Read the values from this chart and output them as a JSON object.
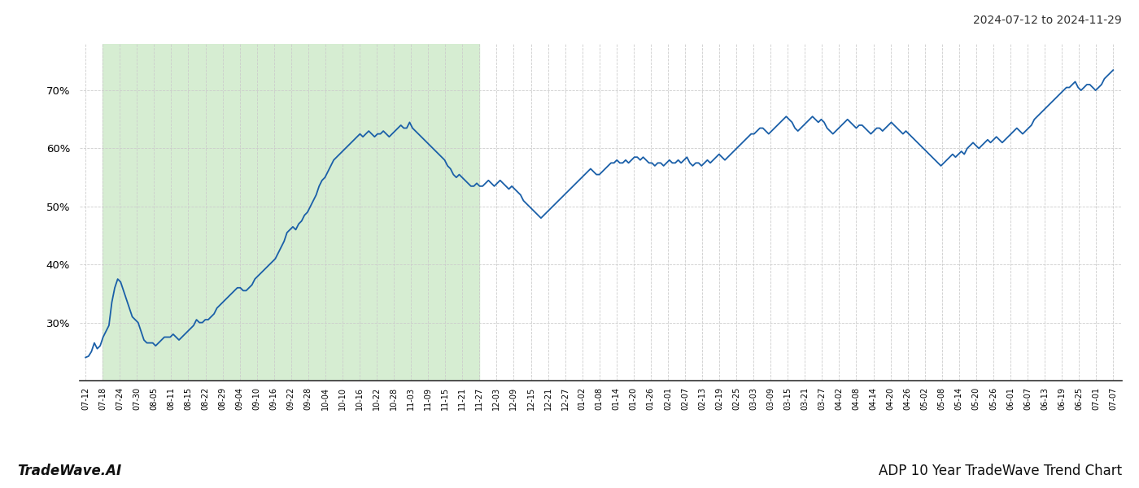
{
  "title_right": "2024-07-12 to 2024-11-29",
  "footer_left": "TradeWave.AI",
  "footer_right": "ADP 10 Year TradeWave Trend Chart",
  "ylim": [
    20,
    78
  ],
  "yticks": [
    30,
    40,
    50,
    60,
    70
  ],
  "line_color": "#1a5fa8",
  "shade_color": "#d6edd2",
  "background_color": "#ffffff",
  "grid_color": "#cccccc",
  "x_labels": [
    "07-12",
    "07-18",
    "07-24",
    "07-30",
    "08-05",
    "08-11",
    "08-15",
    "08-22",
    "08-29",
    "09-04",
    "09-10",
    "09-16",
    "09-22",
    "09-28",
    "10-04",
    "10-10",
    "10-16",
    "10-22",
    "10-28",
    "11-03",
    "11-09",
    "11-15",
    "11-21",
    "11-27",
    "12-03",
    "12-09",
    "12-15",
    "12-21",
    "12-27",
    "01-02",
    "01-08",
    "01-14",
    "01-20",
    "01-26",
    "02-01",
    "02-07",
    "02-13",
    "02-19",
    "02-25",
    "03-03",
    "03-09",
    "03-15",
    "03-21",
    "03-27",
    "04-02",
    "04-08",
    "04-14",
    "04-20",
    "04-26",
    "05-02",
    "05-08",
    "05-14",
    "05-20",
    "05-26",
    "06-01",
    "06-07",
    "06-13",
    "06-19",
    "06-25",
    "07-01",
    "07-07"
  ],
  "shade_label_start": "07-18",
  "shade_label_end": "11-27",
  "values": [
    24.0,
    24.2,
    25.0,
    26.5,
    25.5,
    26.0,
    27.5,
    28.5,
    29.5,
    33.5,
    36.0,
    37.5,
    37.0,
    35.5,
    34.0,
    32.5,
    31.0,
    30.5,
    30.0,
    28.5,
    27.0,
    26.5,
    26.5,
    26.5,
    26.0,
    26.5,
    27.0,
    27.5,
    27.5,
    27.5,
    28.0,
    27.5,
    27.0,
    27.5,
    28.0,
    28.5,
    29.0,
    29.5,
    30.5,
    30.0,
    30.0,
    30.5,
    30.5,
    31.0,
    31.5,
    32.5,
    33.0,
    33.5,
    34.0,
    34.5,
    35.0,
    35.5,
    36.0,
    36.0,
    35.5,
    35.5,
    36.0,
    36.5,
    37.5,
    38.0,
    38.5,
    39.0,
    39.5,
    40.0,
    40.5,
    41.0,
    42.0,
    43.0,
    44.0,
    45.5,
    46.0,
    46.5,
    46.0,
    47.0,
    47.5,
    48.5,
    49.0,
    50.0,
    51.0,
    52.0,
    53.5,
    54.5,
    55.0,
    56.0,
    57.0,
    58.0,
    58.5,
    59.0,
    59.5,
    60.0,
    60.5,
    61.0,
    61.5,
    62.0,
    62.5,
    62.0,
    62.5,
    63.0,
    62.5,
    62.0,
    62.5,
    62.5,
    63.0,
    62.5,
    62.0,
    62.5,
    63.0,
    63.5,
    64.0,
    63.5,
    63.5,
    64.5,
    63.5,
    63.0,
    62.5,
    62.0,
    61.5,
    61.0,
    60.5,
    60.0,
    59.5,
    59.0,
    58.5,
    58.0,
    57.0,
    56.5,
    55.5,
    55.0,
    55.5,
    55.0,
    54.5,
    54.0,
    53.5,
    53.5,
    54.0,
    53.5,
    53.5,
    54.0,
    54.5,
    54.0,
    53.5,
    54.0,
    54.5,
    54.0,
    53.5,
    53.0,
    53.5,
    53.0,
    52.5,
    52.0,
    51.0,
    50.5,
    50.0,
    49.5,
    49.0,
    48.5,
    48.0,
    48.5,
    49.0,
    49.5,
    50.0,
    50.5,
    51.0,
    51.5,
    52.0,
    52.5,
    53.0,
    53.5,
    54.0,
    54.5,
    55.0,
    55.5,
    56.0,
    56.5,
    56.0,
    55.5,
    55.5,
    56.0,
    56.5,
    57.0,
    57.5,
    57.5,
    58.0,
    57.5,
    57.5,
    58.0,
    57.5,
    58.0,
    58.5,
    58.5,
    58.0,
    58.5,
    58.0,
    57.5,
    57.5,
    57.0,
    57.5,
    57.5,
    57.0,
    57.5,
    58.0,
    57.5,
    57.5,
    58.0,
    57.5,
    58.0,
    58.5,
    57.5,
    57.0,
    57.5,
    57.5,
    57.0,
    57.5,
    58.0,
    57.5,
    58.0,
    58.5,
    59.0,
    58.5,
    58.0,
    58.5,
    59.0,
    59.5,
    60.0,
    60.5,
    61.0,
    61.5,
    62.0,
    62.5,
    62.5,
    63.0,
    63.5,
    63.5,
    63.0,
    62.5,
    63.0,
    63.5,
    64.0,
    64.5,
    65.0,
    65.5,
    65.0,
    64.5,
    63.5,
    63.0,
    63.5,
    64.0,
    64.5,
    65.0,
    65.5,
    65.0,
    64.5,
    65.0,
    64.5,
    63.5,
    63.0,
    62.5,
    63.0,
    63.5,
    64.0,
    64.5,
    65.0,
    64.5,
    64.0,
    63.5,
    64.0,
    64.0,
    63.5,
    63.0,
    62.5,
    63.0,
    63.5,
    63.5,
    63.0,
    63.5,
    64.0,
    64.5,
    64.0,
    63.5,
    63.0,
    62.5,
    63.0,
    62.5,
    62.0,
    61.5,
    61.0,
    60.5,
    60.0,
    59.5,
    59.0,
    58.5,
    58.0,
    57.5,
    57.0,
    57.5,
    58.0,
    58.5,
    59.0,
    58.5,
    59.0,
    59.5,
    59.0,
    60.0,
    60.5,
    61.0,
    60.5,
    60.0,
    60.5,
    61.0,
    61.5,
    61.0,
    61.5,
    62.0,
    61.5,
    61.0,
    61.5,
    62.0,
    62.5,
    63.0,
    63.5,
    63.0,
    62.5,
    63.0,
    63.5,
    64.0,
    65.0,
    65.5,
    66.0,
    66.5,
    67.0,
    67.5,
    68.0,
    68.5,
    69.0,
    69.5,
    70.0,
    70.5,
    70.5,
    71.0,
    71.5,
    70.5,
    70.0,
    70.5,
    71.0,
    71.0,
    70.5,
    70.0,
    70.5,
    71.0,
    72.0,
    72.5,
    73.0,
    73.5
  ]
}
